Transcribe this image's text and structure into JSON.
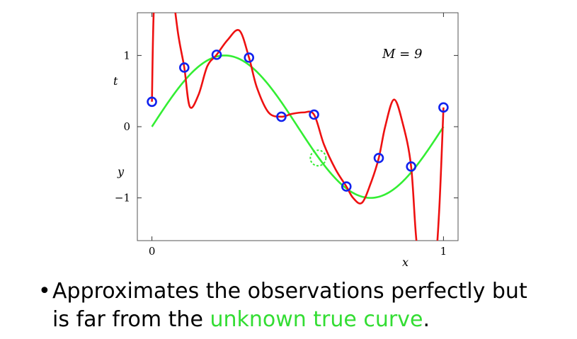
{
  "chart_data": {
    "type": "line",
    "xlabel": "x",
    "ylabel_top": "t",
    "ylabel_mid": "y",
    "annotation": "M = 9",
    "xlim": [
      -0.05,
      1.05
    ],
    "ylim": [
      -1.6,
      1.6
    ],
    "xticks": [
      0,
      1
    ],
    "yticks": [
      -1,
      0,
      1
    ],
    "observations": {
      "x": [
        0.0,
        0.111,
        0.222,
        0.333,
        0.444,
        0.556,
        0.667,
        0.778,
        0.889,
        1.0
      ],
      "y": [
        0.35,
        0.83,
        1.01,
        0.97,
        0.14,
        0.17,
        -0.84,
        -0.44,
        -0.56,
        0.27
      ]
    },
    "held_out_point": {
      "x": 0.57,
      "y": -0.44
    },
    "true_curve": "sin(2πx)",
    "fit_curve": {
      "x": [
        0.0,
        0.008,
        0.03,
        0.06,
        0.09,
        0.111,
        0.13,
        0.16,
        0.19,
        0.222,
        0.26,
        0.3,
        0.333,
        0.36,
        0.4,
        0.444,
        0.48,
        0.52,
        0.556,
        0.59,
        0.63,
        0.667,
        0.69,
        0.72,
        0.75,
        0.778,
        0.8,
        0.83,
        0.86,
        0.889,
        0.91,
        0.94,
        0.97,
        0.985,
        1.0
      ],
      "y": [
        0.35,
        1.8,
        2.5,
        2.2,
        1.3,
        0.83,
        0.28,
        0.45,
        0.85,
        1.01,
        1.22,
        1.35,
        0.97,
        0.55,
        0.2,
        0.14,
        0.18,
        0.2,
        0.17,
        -0.25,
        -0.6,
        -0.84,
        -1.0,
        -1.07,
        -0.8,
        -0.44,
        0.0,
        0.38,
        0.05,
        -0.56,
        -1.7,
        -1.9,
        -1.9,
        -1.2,
        0.27
      ]
    },
    "colors": {
      "fit": "#ee1111",
      "true": "#33ee33",
      "points": "#1122ee"
    }
  },
  "caption": {
    "bullet": "•",
    "line1": "Approximates the observations perfectly but",
    "line2_before": "is far from the ",
    "line2_highlight": "unknown true curve",
    "line2_after": "."
  }
}
